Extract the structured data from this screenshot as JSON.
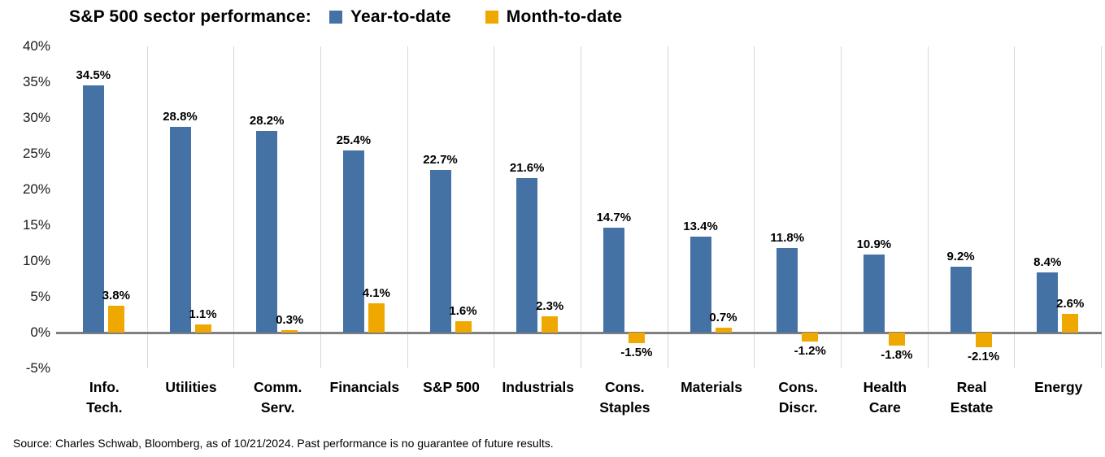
{
  "title": "S&P 500 sector performance:",
  "legend": [
    {
      "label": "Year-to-date",
      "color": "#4472A4"
    },
    {
      "label": "Month-to-date",
      "color": "#EFA800"
    }
  ],
  "source": "Source: Charles Schwab, Bloomberg, as of 10/21/2024.  Past performance is no guarantee of future results.",
  "chart_data": {
    "type": "bar",
    "title": "S&P 500 sector performance:",
    "categories": [
      "Info.\nTech.",
      "Utilities",
      "Comm.\nServ.",
      "Financials",
      "S&P 500",
      "Industrials",
      "Cons.\nStaples",
      "Materials",
      "Cons.\nDiscr.",
      "Health\nCare",
      "Real\nEstate",
      "Energy"
    ],
    "series": [
      {
        "name": "Year-to-date",
        "color": "#4472A4",
        "values": [
          34.5,
          28.8,
          28.2,
          25.4,
          22.7,
          21.6,
          14.7,
          13.4,
          11.8,
          10.9,
          9.2,
          8.4
        ]
      },
      {
        "name": "Month-to-date",
        "color": "#EFA800",
        "values": [
          3.8,
          1.1,
          0.3,
          4.1,
          1.6,
          2.3,
          -1.5,
          0.7,
          -1.2,
          -1.8,
          -2.1,
          2.6
        ]
      }
    ],
    "ylim": [
      -5,
      40
    ],
    "ytick_step": 5,
    "yticks_labels": [
      "40%",
      "35%",
      "30%",
      "25%",
      "20%",
      "15%",
      "10%",
      "5%",
      "0%",
      "-5%"
    ],
    "xlabel": "",
    "ylabel": "",
    "grid": "vertical-category-separators",
    "legend_position": "top",
    "zero_axis_color": "#7f7f7f",
    "gridline_color": "#d9d9d9"
  }
}
